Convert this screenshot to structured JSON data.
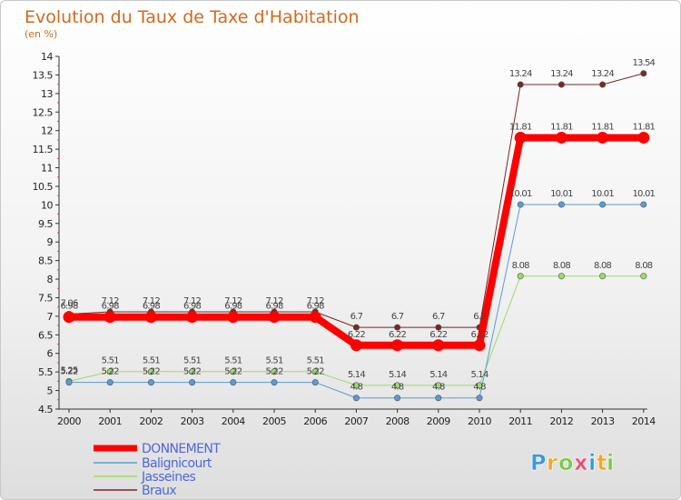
{
  "chart_data": {
    "type": "line",
    "title": "Evolution du Taux de Taxe d'Habitation",
    "subtitle": "(en %)",
    "xlabel": "",
    "ylabel": "",
    "ylim": [
      4.5,
      14
    ],
    "ytick_step": 0.5,
    "ytick_labels": [
      "4.5",
      "5",
      "5.5",
      "6",
      "6.5",
      "7",
      "7.5",
      "8",
      "8.5",
      "9",
      "9.5",
      "10",
      "10.5",
      "11",
      "11.5",
      "12",
      "12.5",
      "13",
      "13.5",
      "14"
    ],
    "categories": [
      "2000",
      "2001",
      "2002",
      "2003",
      "2004",
      "2005",
      "2006",
      "2007",
      "2008",
      "2009",
      "2010",
      "2011",
      "2012",
      "2013",
      "2014"
    ],
    "grid": false,
    "legend_position": "bottom-left",
    "series": [
      {
        "name": "DONNEMENT",
        "color": "#ff0000",
        "width": 8,
        "values": [
          6.98,
          6.98,
          6.98,
          6.98,
          6.98,
          6.98,
          6.98,
          6.22,
          6.22,
          6.22,
          6.22,
          11.81,
          11.81,
          11.81,
          11.81
        ],
        "labels": [
          "6.98",
          "6.98",
          "6.98",
          "6.98",
          "6.98",
          "6.98",
          "6.98",
          "6.22",
          "6.22",
          "6.22",
          "6.22",
          "11.81",
          "11.81",
          "11.81",
          "11.81"
        ]
      },
      {
        "name": "Balignicourt",
        "color": "#5b9bd5",
        "width": 1,
        "values": [
          5.22,
          5.22,
          5.22,
          5.22,
          5.22,
          5.22,
          5.22,
          4.8,
          4.8,
          4.8,
          4.8,
          10.01,
          10.01,
          10.01,
          10.01
        ],
        "labels": [
          "5.22",
          "5.22",
          "5.22",
          "5.22",
          "5.22",
          "5.22",
          "5.22",
          "4.8",
          "4.8",
          "4.8",
          "4.8",
          "10.01",
          "10.01",
          "10.01",
          "10.01"
        ]
      },
      {
        "name": "Jasseines",
        "color": "#99dd66",
        "width": 1,
        "values": [
          5.25,
          5.51,
          5.51,
          5.51,
          5.51,
          5.51,
          5.51,
          5.14,
          5.14,
          5.14,
          5.14,
          8.08,
          8.08,
          8.08,
          8.08
        ],
        "labels": [
          "5.25",
          "5.51",
          "5.51",
          "5.51",
          "5.51",
          "5.51",
          "5.51",
          "5.14",
          "5.14",
          "5.14",
          "5.14",
          "8.08",
          "8.08",
          "8.08",
          "8.08"
        ]
      },
      {
        "name": "Braux",
        "color": "#7a2626",
        "width": 1,
        "values": [
          7.06,
          7.12,
          7.12,
          7.12,
          7.12,
          7.12,
          7.12,
          6.7,
          6.7,
          6.7,
          6.7,
          13.24,
          13.24,
          13.24,
          13.54
        ],
        "labels": [
          "7.06",
          "7.12",
          "7.12",
          "7.12",
          "7.12",
          "7.12",
          "7.12",
          "6.7",
          "6.7",
          "6.7",
          "6.7",
          "13.24",
          "13.24",
          "13.24",
          "13.54"
        ]
      }
    ]
  },
  "logo": {
    "letters": [
      "P",
      "r",
      "o",
      "x",
      "i",
      "t",
      "i"
    ],
    "colors": [
      "#3a9ad9",
      "#f5a623",
      "#7ac943",
      "#e94e77",
      "#3a9ad9",
      "#f5a623",
      "#7ac943"
    ]
  }
}
